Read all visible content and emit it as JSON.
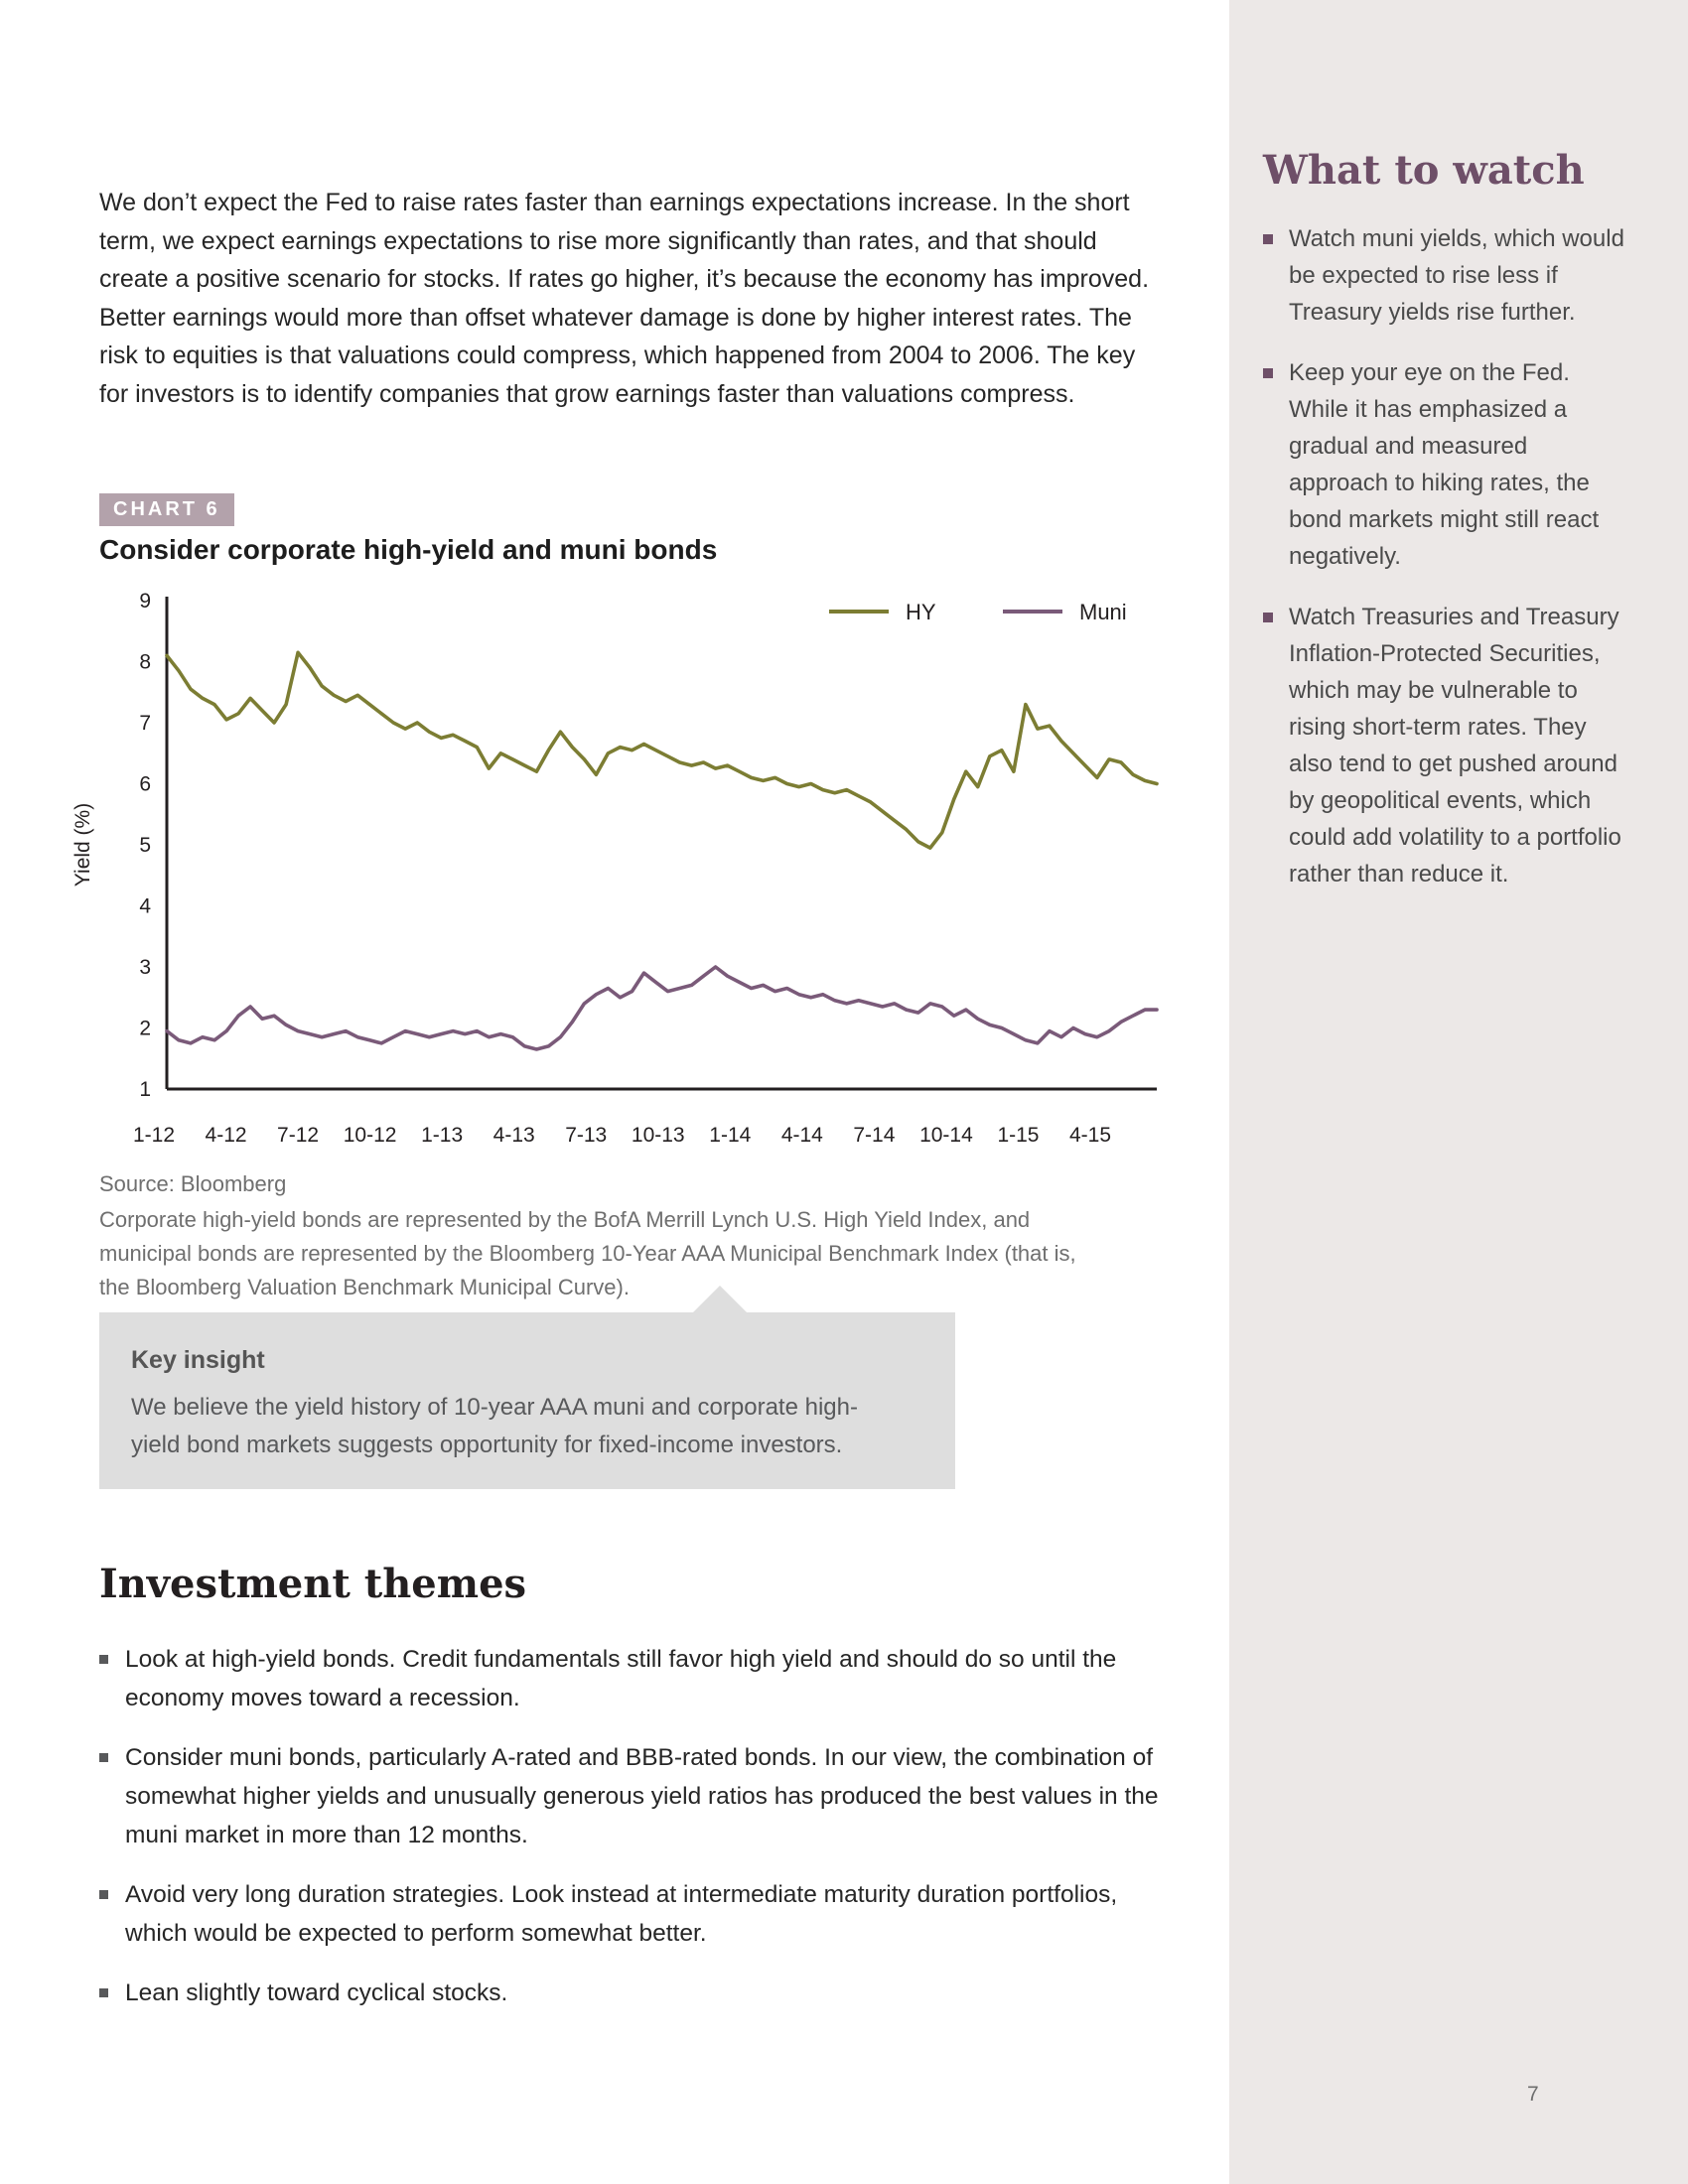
{
  "page": {
    "number": "7"
  },
  "intro": {
    "text": "We don’t expect the Fed to raise rates faster than earnings expectations increase. In the short term, we expect earnings expectations to rise more significantly than rates, and that should create a positive scenario for stocks. If rates go higher, it’s because the economy has improved. Better earnings would more than offset whatever damage is done by higher interest rates. The risk to equities is that valuations could compress, which happened from 2004 to 2006. The key for investors is to identify companies that grow earnings faster than valuations compress."
  },
  "chart_section": {
    "badge": "CHART 6",
    "title": "Consider corporate high-yield and muni bonds",
    "source": "Source: Bloomberg",
    "footnote": "Corporate high-yield bonds are represented by the BofA Merrill Lynch U.S. High Yield Index, and municipal bonds are represented by the Bloomberg 10-Year AAA Municipal Benchmark Index (that is, the Bloomberg Valuation Benchmark Municipal Curve)."
  },
  "chart_data": {
    "type": "line",
    "title": "Consider corporate high-yield and muni bonds",
    "xlabel": "",
    "ylabel": "Yield (%)",
    "ylim": [
      1,
      9
    ],
    "yticks": [
      1,
      2,
      3,
      4,
      5,
      6,
      7,
      8,
      9
    ],
    "x_tick_labels": [
      "1-12",
      "4-12",
      "7-12",
      "10-12",
      "1-13",
      "4-13",
      "7-13",
      "10-13",
      "1-14",
      "4-14",
      "7-14",
      "10-14",
      "1-15",
      "4-15"
    ],
    "x_range": "Jan 2012 through Jun 2015, 2 points per month",
    "grid": false,
    "legend_position": "top-right",
    "series": [
      {
        "name": "HY",
        "color": "#7c7d33",
        "values": [
          8.1,
          7.85,
          7.55,
          7.4,
          7.3,
          7.05,
          7.15,
          7.4,
          7.2,
          7.0,
          7.3,
          8.15,
          7.9,
          7.6,
          7.45,
          7.35,
          7.45,
          7.3,
          7.15,
          7.0,
          6.9,
          7.0,
          6.85,
          6.75,
          6.8,
          6.7,
          6.6,
          6.25,
          6.5,
          6.4,
          6.3,
          6.2,
          6.55,
          6.85,
          6.6,
          6.4,
          6.15,
          6.5,
          6.6,
          6.55,
          6.65,
          6.55,
          6.45,
          6.35,
          6.3,
          6.35,
          6.25,
          6.3,
          6.2,
          6.1,
          6.05,
          6.1,
          6.0,
          5.95,
          6.0,
          5.9,
          5.85,
          5.9,
          5.8,
          5.7,
          5.55,
          5.4,
          5.25,
          5.05,
          4.95,
          5.2,
          5.75,
          6.2,
          5.95,
          6.45,
          6.55,
          6.2,
          7.3,
          6.9,
          6.95,
          6.7,
          6.5,
          6.3,
          6.1,
          6.4,
          6.35,
          6.15,
          6.05,
          6.0
        ]
      },
      {
        "name": "Muni",
        "color": "#7a5a79",
        "values": [
          1.95,
          1.8,
          1.75,
          1.85,
          1.8,
          1.95,
          2.2,
          2.35,
          2.15,
          2.2,
          2.05,
          1.95,
          1.9,
          1.85,
          1.9,
          1.95,
          1.85,
          1.8,
          1.75,
          1.85,
          1.95,
          1.9,
          1.85,
          1.9,
          1.95,
          1.9,
          1.95,
          1.85,
          1.9,
          1.85,
          1.7,
          1.65,
          1.7,
          1.85,
          2.1,
          2.4,
          2.55,
          2.65,
          2.5,
          2.6,
          2.9,
          2.75,
          2.6,
          2.65,
          2.7,
          2.85,
          3.0,
          2.85,
          2.75,
          2.65,
          2.7,
          2.6,
          2.65,
          2.55,
          2.5,
          2.55,
          2.45,
          2.4,
          2.45,
          2.4,
          2.35,
          2.4,
          2.3,
          2.25,
          2.4,
          2.35,
          2.2,
          2.3,
          2.15,
          2.05,
          2.0,
          1.9,
          1.8,
          1.75,
          1.95,
          1.85,
          2.0,
          1.9,
          1.85,
          1.95,
          2.1,
          2.2,
          2.3,
          2.3
        ]
      }
    ]
  },
  "key_insight": {
    "title": "Key insight",
    "body": "We believe the yield history of 10-year AAA muni and corporate high-yield bond markets suggests opportunity for fixed-income investors."
  },
  "themes": {
    "heading": "Investment themes",
    "items": [
      "Look at high-yield bonds. Credit fundamentals still favor high yield and should do so until the economy moves toward a recession.",
      "Consider muni bonds, particularly A-rated and BBB-rated bonds. In our view, the combination of somewhat higher yields and unusually generous yield ratios has produced the best values in the muni market in more than 12 months.",
      "Avoid very long duration strategies. Look instead at intermediate maturity duration portfolios, which would be expected to perform somewhat better.",
      "Lean slightly toward cyclical stocks."
    ]
  },
  "sidebar": {
    "heading": "What to watch",
    "items": [
      "Watch muni yields, which would be expected to rise less if Treasury yields rise further.",
      "Keep your eye on the Fed. While it has emphasized a gradual and measured approach to hiking rates, the bond markets might still react negatively.",
      "Watch Treasuries and Treasury Inflation-Protected Securities, which may be vulnerable to rising short-term rates. They also tend to get pushed around by geopolitical events, which could add volatility to a portfolio rather than reduce it."
    ]
  },
  "colors": {
    "hy_line": "#7c7d33",
    "muni_line": "#7a5a79",
    "sidebar_bg": "#ece8e7",
    "badge_bg": "#b3a2ab",
    "heading_plum": "#6e4f68",
    "key_insight_bg": "#dedede"
  }
}
